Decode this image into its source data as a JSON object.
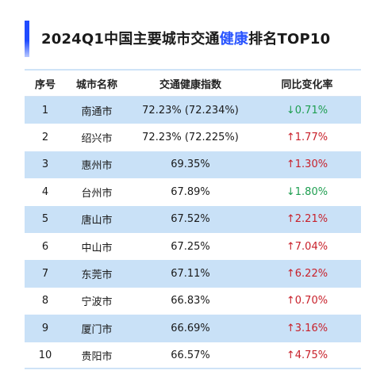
{
  "title": {
    "prefix": "2024Q1中国主要城市交通",
    "accent": "健康",
    "suffix": "排名TOP10"
  },
  "headers": [
    "序号",
    "城市名称",
    "交通健康指数",
    "同比变化率"
  ],
  "rows": [
    {
      "rank": "1",
      "city": "南通市",
      "index": "72.23% (72.234%)",
      "change": "↓0.71%",
      "direction": "down"
    },
    {
      "rank": "2",
      "city": "绍兴市",
      "index": "72.23% (72.225%)",
      "change": "↑1.77%",
      "direction": "up"
    },
    {
      "rank": "3",
      "city": "惠州市",
      "index": "69.35%",
      "change": "↑1.30%",
      "direction": "up"
    },
    {
      "rank": "4",
      "city": "台州市",
      "index": "67.89%",
      "change": "↓1.80%",
      "direction": "down"
    },
    {
      "rank": "5",
      "city": "唐山市",
      "index": "67.52%",
      "change": "↑2.21%",
      "direction": "up"
    },
    {
      "rank": "6",
      "city": "中山市",
      "index": "67.25%",
      "change": "↑7.04%",
      "direction": "up"
    },
    {
      "rank": "7",
      "city": "东莞市",
      "index": "67.11%",
      "change": "↑6.22%",
      "direction": "up"
    },
    {
      "rank": "8",
      "city": "宁波市",
      "index": "66.83%",
      "change": "↑0.70%",
      "direction": "up"
    },
    {
      "rank": "9",
      "city": "厦门市",
      "index": "66.69%",
      "change": "↑3.16%",
      "direction": "up"
    },
    {
      "rank": "10",
      "city": "贵阳市",
      "index": "66.57%",
      "change": "↑4.75%",
      "direction": "up"
    }
  ],
  "colors": {
    "accent": "#2a55ff",
    "stripe": "#c9e1f7",
    "up": "#c8202a",
    "down": "#1e9e50"
  }
}
